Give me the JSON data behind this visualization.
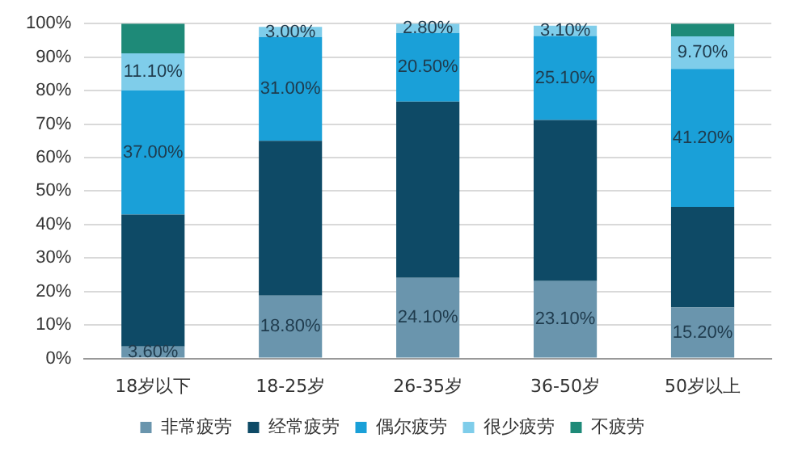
{
  "chart_data": {
    "type": "bar",
    "stacked": true,
    "categories": [
      "18岁以下",
      "18-25岁",
      "26-35岁",
      "36-50岁",
      "50岁以上"
    ],
    "series": [
      {
        "name": "非常疲劳",
        "color": "#6a95ad",
        "values": [
          3.6,
          18.8,
          24.1,
          23.1,
          15.2
        ],
        "value_labels": [
          "3.60%",
          "18.80%",
          "24.10%",
          "23.10%",
          "15.20%"
        ]
      },
      {
        "name": "经常疲劳",
        "color": "#0e4a66",
        "values": [
          39.4,
          46.2,
          52.6,
          48.1,
          30.1
        ],
        "value_labels": [
          null,
          null,
          null,
          null,
          null
        ]
      },
      {
        "name": "偶尔疲劳",
        "color": "#1aa0d8",
        "values": [
          37,
          31,
          20.5,
          25.1,
          41.2
        ],
        "value_labels": [
          "37.00%",
          "31.00%",
          "20.50%",
          "25.10%",
          "41.20%"
        ]
      },
      {
        "name": "很少疲劳",
        "color": "#7fcdea",
        "values": [
          11.1,
          3,
          2.8,
          3.1,
          9.7
        ],
        "value_labels": [
          "11.10%",
          "3.00%",
          "2.80%",
          "3.10%",
          "9.70%"
        ]
      },
      {
        "name": "不疲劳",
        "color": "#1e8a78",
        "values": [
          8.9,
          null,
          0,
          null,
          3.8
        ],
        "value_labels": [
          null,
          null,
          null,
          null,
          null
        ]
      }
    ],
    "ylim": [
      0,
      100
    ],
    "yticks": [
      {
        "value": 0,
        "label": "0%"
      },
      {
        "value": 10,
        "label": "10%"
      },
      {
        "value": 20,
        "label": "20%"
      },
      {
        "value": 30,
        "label": "30%"
      },
      {
        "value": 40,
        "label": "40%"
      },
      {
        "value": 50,
        "label": "50%"
      },
      {
        "value": 60,
        "label": "60%"
      },
      {
        "value": 70,
        "label": "70%"
      },
      {
        "value": 80,
        "label": "80%"
      },
      {
        "value": 90,
        "label": "90%"
      },
      {
        "value": 100,
        "label": "100%"
      }
    ],
    "grid": "y",
    "legend": "bottom"
  }
}
